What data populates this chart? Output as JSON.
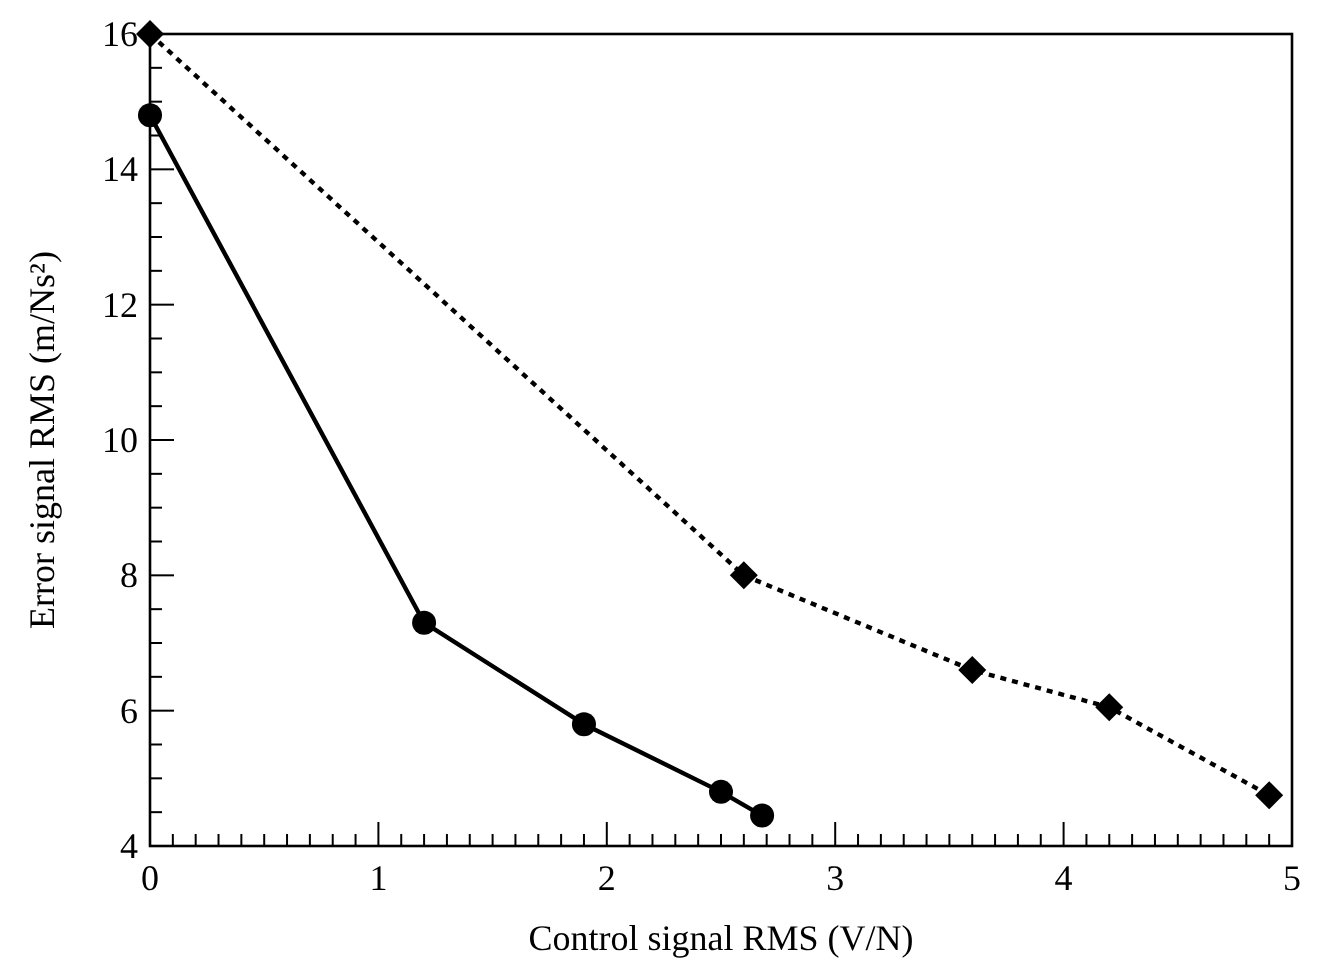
{
  "chart_data": {
    "type": "line",
    "xlabel": "Control signal RMS (V/N)",
    "ylabel": "Error signal RMS (m/Ns²)",
    "xlim": [
      0,
      5
    ],
    "ylim": [
      4,
      16
    ],
    "xticks": [
      0,
      1,
      2,
      3,
      4,
      5,
      {
        "value": 0.1,
        "label": null
      },
      {
        "value": 0.2,
        "label": null
      },
      {
        "value": 0.3,
        "label": null
      },
      {
        "value": 0.4,
        "label": null
      },
      {
        "value": 0.5,
        "label": null
      },
      {
        "value": 0.6,
        "label": null
      },
      {
        "value": 0.7,
        "label": null
      },
      {
        "value": 0.8,
        "label": null
      },
      {
        "value": 0.9,
        "label": null
      },
      {
        "value": 1.1,
        "label": null
      },
      {
        "value": 1.2,
        "label": null
      },
      {
        "value": 1.3,
        "label": null
      },
      {
        "value": 1.4,
        "label": null
      },
      {
        "value": 1.5,
        "label": null
      },
      {
        "value": 1.6,
        "label": null
      },
      {
        "value": 1.7,
        "label": null
      },
      {
        "value": 1.8,
        "label": null
      },
      {
        "value": 1.9,
        "label": null
      },
      {
        "value": 2.1,
        "label": null
      },
      {
        "value": 2.2,
        "label": null
      },
      {
        "value": 2.3,
        "label": null
      },
      {
        "value": 2.4,
        "label": null
      },
      {
        "value": 2.5,
        "label": null
      },
      {
        "value": 2.6,
        "label": null
      },
      {
        "value": 2.7,
        "label": null
      },
      {
        "value": 2.8,
        "label": null
      },
      {
        "value": 2.9,
        "label": null
      },
      {
        "value": 3.1,
        "label": null
      },
      {
        "value": 3.2,
        "label": null
      },
      {
        "value": 3.3,
        "label": null
      },
      {
        "value": 3.4,
        "label": null
      },
      {
        "value": 3.5,
        "label": null
      },
      {
        "value": 3.6,
        "label": null
      },
      {
        "value": 3.7,
        "label": null
      },
      {
        "value": 3.8,
        "label": null
      },
      {
        "value": 3.9,
        "label": null
      },
      {
        "value": 4.1,
        "label": null
      },
      {
        "value": 4.2,
        "label": null
      },
      {
        "value": 4.3,
        "label": null
      },
      {
        "value": 4.4,
        "label": null
      },
      {
        "value": 4.5,
        "label": null
      },
      {
        "value": 4.6,
        "label": null
      },
      {
        "value": 4.7,
        "label": null
      },
      {
        "value": 4.8,
        "label": null
      },
      {
        "value": 4.9,
        "label": null
      }
    ],
    "yticks": [
      4,
      6,
      8,
      10,
      12,
      14,
      16,
      {
        "value": 4.5,
        "label": null
      },
      {
        "value": 5,
        "label": null
      },
      {
        "value": 5.5,
        "label": null
      },
      {
        "value": 6.5,
        "label": null
      },
      {
        "value": 7,
        "label": null
      },
      {
        "value": 7.5,
        "label": null
      },
      {
        "value": 8.5,
        "label": null
      },
      {
        "value": 9,
        "label": null
      },
      {
        "value": 9.5,
        "label": null
      },
      {
        "value": 10.5,
        "label": null
      },
      {
        "value": 11,
        "label": null
      },
      {
        "value": 11.5,
        "label": null
      },
      {
        "value": 12.5,
        "label": null
      },
      {
        "value": 13,
        "label": null
      },
      {
        "value": 13.5,
        "label": null
      },
      {
        "value": 14.5,
        "label": null
      },
      {
        "value": 15,
        "label": null
      },
      {
        "value": 15.5,
        "label": null
      }
    ],
    "series": [
      {
        "color": "#000000",
        "marker": "circle",
        "line_style": "solid",
        "x": [
          0,
          1.2,
          1.9,
          2.5,
          2.68
        ],
        "values": [
          14.8,
          7.3,
          5.8,
          4.8,
          4.45
        ]
      },
      {
        "color": "#000000",
        "marker": "diamond",
        "line_style": "dotted",
        "x": [
          0,
          2.6,
          3.6,
          4.2,
          4.9
        ],
        "values": [
          16,
          8,
          6.6,
          6.05,
          4.75
        ]
      }
    ]
  }
}
